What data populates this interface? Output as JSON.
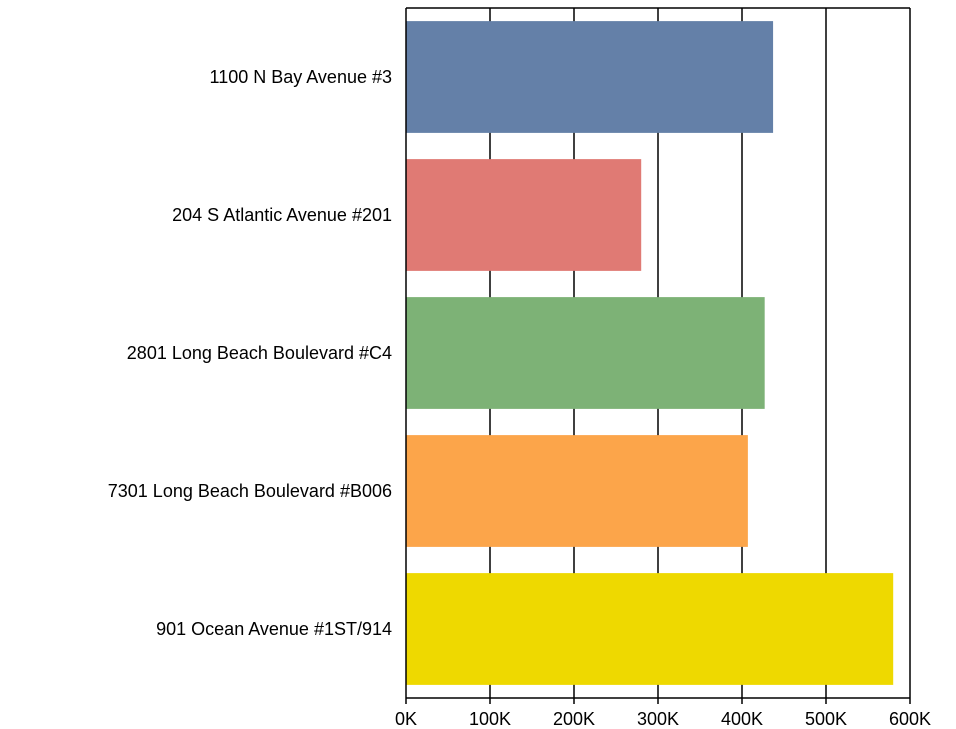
{
  "chart_data": {
    "type": "bar",
    "orientation": "horizontal",
    "title": "",
    "xlabel": "",
    "ylabel": "",
    "categories": [
      "1100 N Bay Avenue #3",
      "204 S Atlantic Avenue #201",
      "2801 Long Beach Boulevard #C4",
      "7301 Long Beach Boulevard #B006",
      "901 Ocean Avenue #1ST/914"
    ],
    "values": [
      437000,
      280000,
      427000,
      407000,
      580000
    ],
    "colors": [
      "#6480a8",
      "#e07a74",
      "#7db276",
      "#fca54a",
      "#eed900"
    ],
    "xlim": [
      0,
      600000
    ],
    "xticks": [
      0,
      100000,
      200000,
      300000,
      400000,
      500000,
      600000
    ],
    "xtick_labels": [
      "0K",
      "100K",
      "200K",
      "300K",
      "400K",
      "500K",
      "600K"
    ],
    "grid": "vertical",
    "legend": "none"
  }
}
